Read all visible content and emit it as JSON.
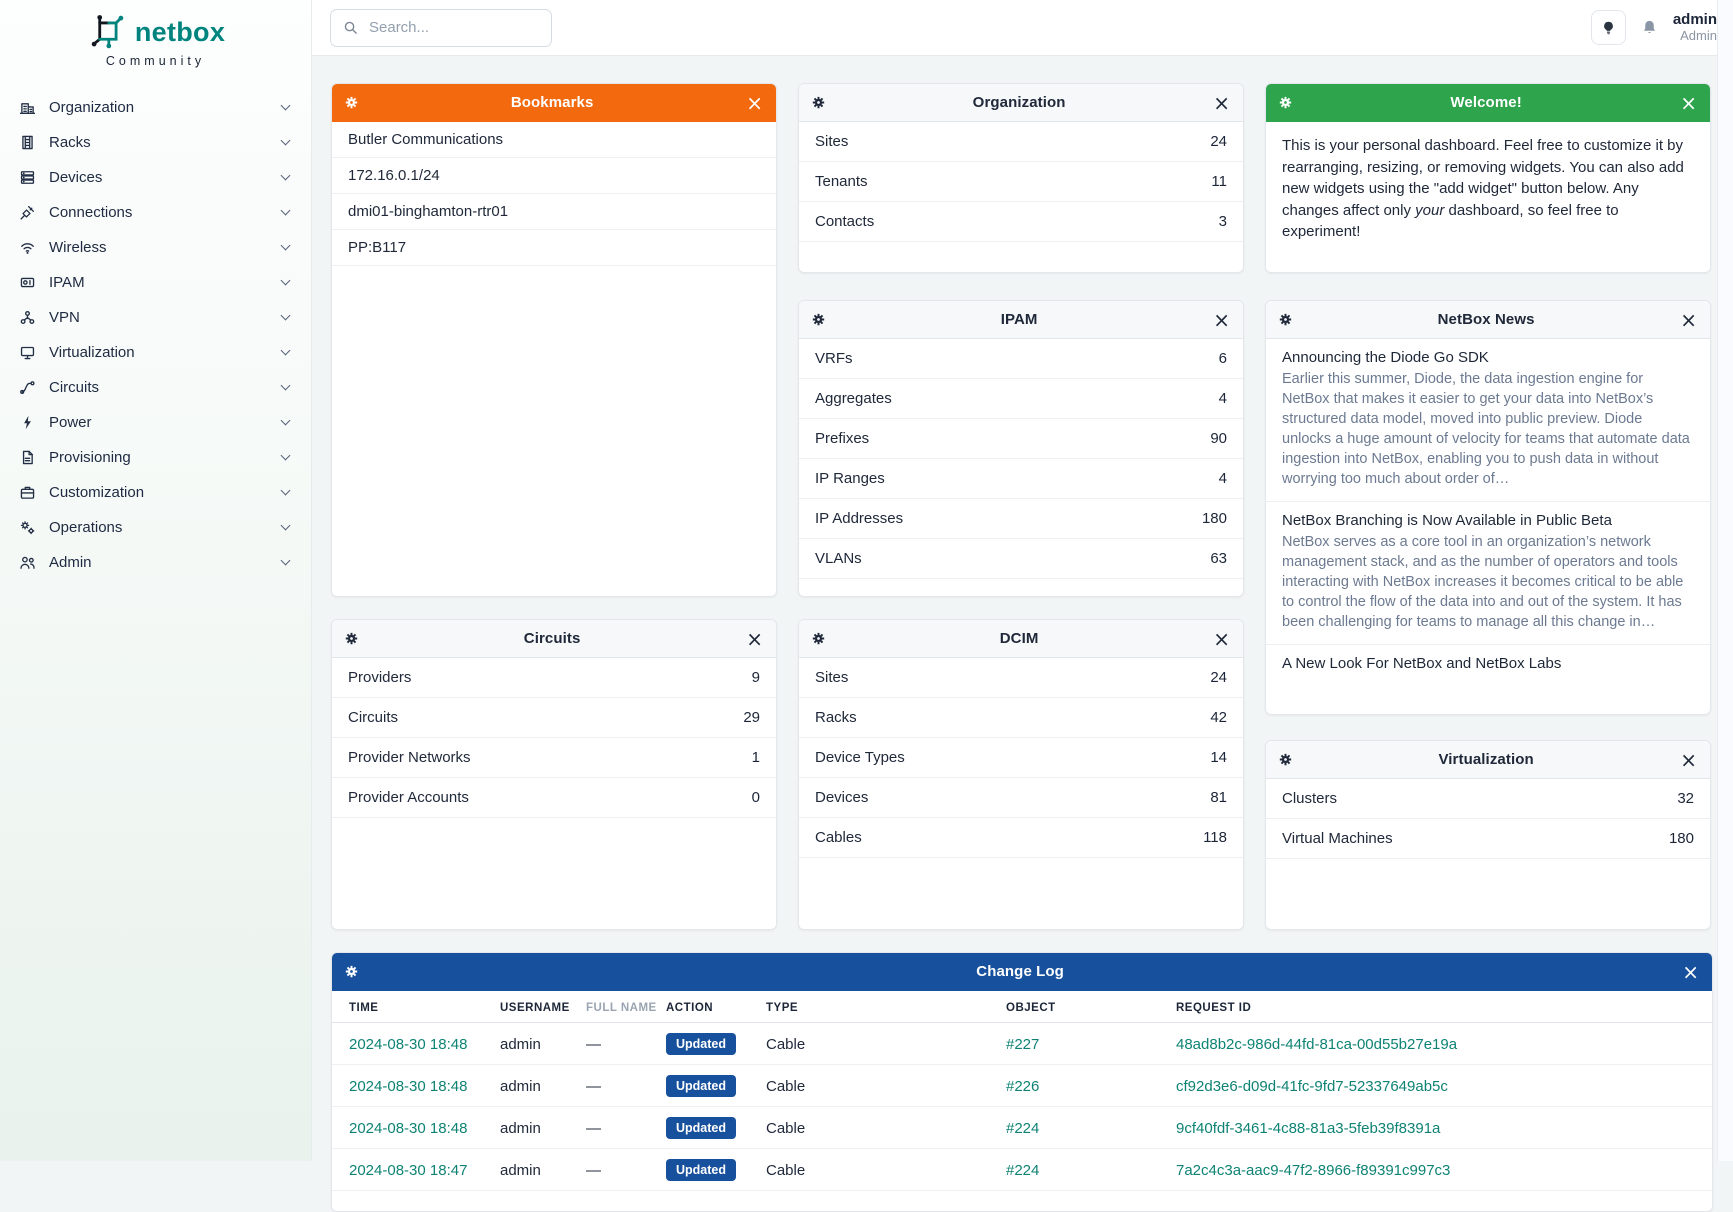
{
  "brand": {
    "name": "netbox",
    "subtitle": "Community"
  },
  "icons": {
    "close": "×"
  },
  "colors": {
    "accent_orange": "#f2690e",
    "accent_green": "#2ea44c",
    "accent_blue": "#17509c",
    "link_teal": "#0e8374",
    "brand_teal": "#00847d"
  },
  "topbar": {
    "search_placeholder": "Search...",
    "username": "admin",
    "role": "Admin"
  },
  "sidebar": {
    "items": [
      {
        "label": "Organization"
      },
      {
        "label": "Racks"
      },
      {
        "label": "Devices"
      },
      {
        "label": "Connections"
      },
      {
        "label": "Wireless"
      },
      {
        "label": "IPAM"
      },
      {
        "label": "VPN"
      },
      {
        "label": "Virtualization"
      },
      {
        "label": "Circuits"
      },
      {
        "label": "Power"
      },
      {
        "label": "Provisioning"
      },
      {
        "label": "Customization"
      },
      {
        "label": "Operations"
      },
      {
        "label": "Admin"
      }
    ]
  },
  "widgets": {
    "bookmarks": {
      "title": "Bookmarks",
      "items": [
        "Butler Communications",
        "172.16.0.1/24",
        "dmi01-binghamton-rtr01",
        "PP:B117"
      ]
    },
    "organization": {
      "title": "Organization",
      "rows": [
        {
          "label": "Sites",
          "value": "24"
        },
        {
          "label": "Tenants",
          "value": "11"
        },
        {
          "label": "Contacts",
          "value": "3"
        }
      ]
    },
    "welcome": {
      "title": "Welcome!",
      "body_pre": "This is your personal dashboard. Feel free to customize it by rearranging, resizing, or removing widgets. You can also add new widgets using the \"add widget\" button below. Any changes affect only ",
      "body_italic": "your",
      "body_post": " dashboard, so feel free to experiment!"
    },
    "ipam": {
      "title": "IPAM",
      "rows": [
        {
          "label": "VRFs",
          "value": "6"
        },
        {
          "label": "Aggregates",
          "value": "4"
        },
        {
          "label": "Prefixes",
          "value": "90"
        },
        {
          "label": "IP Ranges",
          "value": "4"
        },
        {
          "label": "IP Addresses",
          "value": "180"
        },
        {
          "label": "VLANs",
          "value": "63"
        }
      ]
    },
    "news": {
      "title": "NetBox News",
      "items": [
        {
          "title": "Announcing the Diode Go SDK",
          "body": "Earlier this summer, Diode, the data ingestion engine for NetBox that makes it easier to get your data into NetBox’s structured data model, moved into public preview. Diode unlocks a huge amount of velocity for teams that automate data ingestion into NetBox, enabling you to push data in without worrying too much about order of…"
        },
        {
          "title": "NetBox Branching is Now Available in Public Beta",
          "body": "NetBox serves as a core tool in an organization’s network management stack, and as the number of operators and tools interacting with NetBox increases it becomes critical to be able to control the flow of the data into and out of the system. It has been challenging for teams to manage all this change in…"
        },
        {
          "title": "A New Look For NetBox and NetBox Labs",
          "body": ""
        }
      ]
    },
    "circuits": {
      "title": "Circuits",
      "rows": [
        {
          "label": "Providers",
          "value": "9"
        },
        {
          "label": "Circuits",
          "value": "29"
        },
        {
          "label": "Provider Networks",
          "value": "1"
        },
        {
          "label": "Provider Accounts",
          "value": "0"
        }
      ]
    },
    "dcim": {
      "title": "DCIM",
      "rows": [
        {
          "label": "Sites",
          "value": "24"
        },
        {
          "label": "Racks",
          "value": "42"
        },
        {
          "label": "Device Types",
          "value": "14"
        },
        {
          "label": "Devices",
          "value": "81"
        },
        {
          "label": "Cables",
          "value": "118"
        }
      ]
    },
    "virtualization": {
      "title": "Virtualization",
      "rows": [
        {
          "label": "Clusters",
          "value": "32"
        },
        {
          "label": "Virtual Machines",
          "value": "180"
        }
      ]
    },
    "changelog": {
      "title": "Change Log",
      "columns": [
        {
          "label": "TIME"
        },
        {
          "label": "USERNAME"
        },
        {
          "label": "FULL NAME",
          "muted": true
        },
        {
          "label": "ACTION"
        },
        {
          "label": "TYPE"
        },
        {
          "label": "OBJECT"
        },
        {
          "label": "REQUEST ID"
        }
      ],
      "rows": [
        {
          "time": "2024-08-30 18:48",
          "username": "admin",
          "full_name": "—",
          "action": "Updated",
          "type": "Cable",
          "object": "#227",
          "request_id": "48ad8b2c-986d-44fd-81ca-00d55b27e19a"
        },
        {
          "time": "2024-08-30 18:48",
          "username": "admin",
          "full_name": "—",
          "action": "Updated",
          "type": "Cable",
          "object": "#226",
          "request_id": "cf92d3e6-d09d-41fc-9fd7-52337649ab5c"
        },
        {
          "time": "2024-08-30 18:48",
          "username": "admin",
          "full_name": "—",
          "action": "Updated",
          "type": "Cable",
          "object": "#224",
          "request_id": "9cf40fdf-3461-4c88-81a3-5feb39f8391a"
        },
        {
          "time": "2024-08-30 18:47",
          "username": "admin",
          "full_name": "—",
          "action": "Updated",
          "type": "Cable",
          "object": "#224",
          "request_id": "7a2c4c3a-aac9-47f2-8966-f89391c997c3"
        }
      ]
    }
  }
}
